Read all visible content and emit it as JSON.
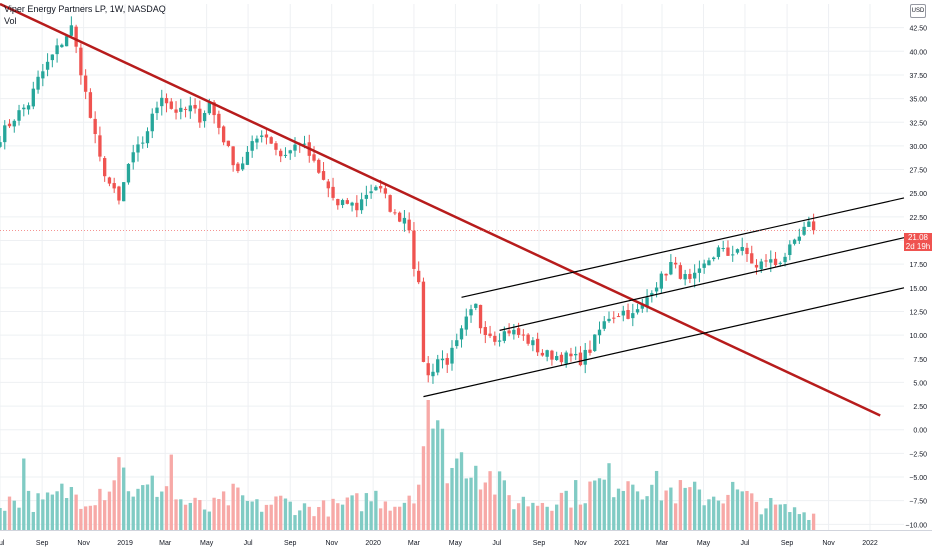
{
  "header": {
    "title": "Viper Energy Partners LP, 1W, NASDAQ",
    "volume_label": "Vol",
    "currency": "USD"
  },
  "price_tag": {
    "price": "21.08",
    "countdown": "2d 19h"
  },
  "colors": {
    "up": "#26a69a",
    "down": "#ef5350",
    "vol_up": "#80cbc4",
    "vol_down": "#f7a9a7",
    "trendline": "#b71c1c",
    "channel": "#000000",
    "grid": "#eef0f3",
    "axis_text": "#131722"
  },
  "chart_data": {
    "type": "candlestick",
    "title": "Viper Energy Partners LP, 1W, NASDAQ",
    "timeframe": "1W",
    "x_tick_labels": [
      "Jul",
      "Sep",
      "Nov",
      "2019",
      "Mar",
      "May",
      "Jul",
      "Sep",
      "Nov",
      "2020",
      "Mar",
      "May",
      "Jul",
      "Sep",
      "Nov",
      "2021",
      "Mar",
      "May",
      "Jul",
      "Sep",
      "Nov",
      "2022"
    ],
    "x_ticks": [
      "2018-07-01",
      "2018-09-01",
      "2018-11-01",
      "2019-01-01",
      "2019-03-01",
      "2019-05-01",
      "2019-07-01",
      "2019-09-01",
      "2019-11-01",
      "2020-01-01",
      "2020-03-01",
      "2020-05-01",
      "2020-07-01",
      "2020-09-01",
      "2020-11-01",
      "2021-01-01",
      "2021-03-01",
      "2021-05-01",
      "2021-07-01",
      "2021-09-01",
      "2021-11-01",
      "2022-01-01"
    ],
    "x_range": [
      "2018-07-01",
      "2022-02-20"
    ],
    "y_tick_labels": [
      "42.50",
      "40.00",
      "37.50",
      "35.00",
      "32.50",
      "30.00",
      "27.50",
      "25.00",
      "22.50",
      "20.00",
      "17.50",
      "15.00",
      "12.50",
      "10.00",
      "7.50",
      "5.00",
      "2.50",
      "0.00",
      "−2.50",
      "−5.00",
      "−7.50",
      "−10.00"
    ],
    "y_range": [
      -10.6,
      45
    ],
    "last_price": 21.08,
    "anchors": [
      [
        "2018-07-01",
        31.0
      ],
      [
        "2018-07-22",
        33.0
      ],
      [
        "2018-08-12",
        34.5
      ],
      [
        "2018-08-26",
        37.0
      ],
      [
        "2018-09-16",
        39.5
      ],
      [
        "2018-09-30",
        41.0
      ],
      [
        "2018-10-14",
        42.5
      ],
      [
        "2018-10-28",
        38.0
      ],
      [
        "2018-11-11",
        33.0
      ],
      [
        "2018-11-25",
        28.5
      ],
      [
        "2018-12-09",
        26.0
      ],
      [
        "2018-12-23",
        24.0
      ],
      [
        "2019-01-06",
        28.0
      ],
      [
        "2019-01-27",
        30.5
      ],
      [
        "2019-02-10",
        33.0
      ],
      [
        "2019-02-24",
        35.5
      ],
      [
        "2019-03-10",
        34.0
      ],
      [
        "2019-03-24",
        33.5
      ],
      [
        "2019-04-07",
        34.0
      ],
      [
        "2019-04-21",
        33.0
      ],
      [
        "2019-05-05",
        34.5
      ],
      [
        "2019-05-19",
        32.0
      ],
      [
        "2019-06-02",
        29.5
      ],
      [
        "2019-06-16",
        27.5
      ],
      [
        "2019-07-07",
        30.0
      ],
      [
        "2019-07-21",
        31.5
      ],
      [
        "2019-08-04",
        30.5
      ],
      [
        "2019-08-18",
        29.0
      ],
      [
        "2019-09-01",
        29.5
      ],
      [
        "2019-09-15",
        30.5
      ],
      [
        "2019-09-29",
        29.0
      ],
      [
        "2019-10-13",
        27.0
      ],
      [
        "2019-10-27",
        25.5
      ],
      [
        "2019-11-10",
        23.5
      ],
      [
        "2019-11-24",
        24.0
      ],
      [
        "2019-12-08",
        23.5
      ],
      [
        "2019-12-22",
        25.0
      ],
      [
        "2020-01-05",
        25.8
      ],
      [
        "2020-01-19",
        24.5
      ],
      [
        "2020-02-02",
        22.5
      ],
      [
        "2020-02-16",
        22.5
      ],
      [
        "2020-02-23",
        21.5
      ],
      [
        "2020-03-01",
        17.5
      ],
      [
        "2020-03-08",
        15.0
      ],
      [
        "2020-03-15",
        7.5
      ],
      [
        "2020-03-22",
        5.6
      ],
      [
        "2020-04-05",
        7.5
      ],
      [
        "2020-04-19",
        7.3
      ],
      [
        "2020-05-03",
        9.0
      ],
      [
        "2020-05-17",
        11.5
      ],
      [
        "2020-05-31",
        13.0
      ],
      [
        "2020-06-07",
        11.0
      ],
      [
        "2020-06-28",
        9.8
      ],
      [
        "2020-07-19",
        10.5
      ],
      [
        "2020-08-09",
        9.8
      ],
      [
        "2020-08-23",
        9.0
      ],
      [
        "2020-09-06",
        8.0
      ],
      [
        "2020-09-27",
        7.8
      ],
      [
        "2020-10-18",
        7.6
      ],
      [
        "2020-11-01",
        7.4
      ],
      [
        "2020-11-15",
        8.5
      ],
      [
        "2020-11-29",
        10.5
      ],
      [
        "2020-12-13",
        12.0
      ],
      [
        "2021-01-03",
        12.5
      ],
      [
        "2021-01-17",
        12.0
      ],
      [
        "2021-01-31",
        13.0
      ],
      [
        "2021-02-14",
        15.0
      ],
      [
        "2021-02-28",
        16.0
      ],
      [
        "2021-03-14",
        17.5
      ],
      [
        "2021-03-28",
        16.5
      ],
      [
        "2021-04-11",
        15.5
      ],
      [
        "2021-04-25",
        16.5
      ],
      [
        "2021-05-09",
        18.0
      ],
      [
        "2021-05-23",
        19.0
      ],
      [
        "2021-06-06",
        18.5
      ],
      [
        "2021-06-20",
        19.2
      ],
      [
        "2021-07-04",
        18.5
      ],
      [
        "2021-07-18",
        17.0
      ],
      [
        "2021-08-01",
        18.0
      ],
      [
        "2021-08-15",
        17.5
      ],
      [
        "2021-08-29",
        18.5
      ],
      [
        "2021-09-12",
        19.5
      ],
      [
        "2021-09-26",
        21.0
      ],
      [
        "2021-10-03",
        21.5
      ],
      [
        "2021-10-10",
        21.08
      ]
    ],
    "volume_anchors": [
      [
        "2018-07-01",
        0.22
      ],
      [
        "2018-08-05",
        0.25
      ],
      [
        "2018-09-02",
        0.2
      ],
      [
        "2018-10-07",
        0.3
      ],
      [
        "2018-11-04",
        0.26
      ],
      [
        "2018-12-02",
        0.33
      ],
      [
        "2018-12-23",
        0.48
      ],
      [
        "2019-01-20",
        0.27
      ],
      [
        "2019-02-24",
        0.36
      ],
      [
        "2019-03-24",
        0.22
      ],
      [
        "2019-05-05",
        0.16
      ],
      [
        "2019-06-09",
        0.26
      ],
      [
        "2019-07-14",
        0.18
      ],
      [
        "2019-08-18",
        0.22
      ],
      [
        "2019-09-22",
        0.17
      ],
      [
        "2019-10-27",
        0.17
      ],
      [
        "2019-12-01",
        0.2
      ],
      [
        "2020-01-05",
        0.26
      ],
      [
        "2020-02-09",
        0.2
      ],
      [
        "2020-03-08",
        0.38
      ],
      [
        "2020-03-22",
        1.0
      ],
      [
        "2020-04-05",
        0.68
      ],
      [
        "2020-04-26",
        0.5
      ],
      [
        "2020-05-24",
        0.58
      ],
      [
        "2020-06-21",
        0.4
      ],
      [
        "2020-07-26",
        0.22
      ],
      [
        "2020-08-30",
        0.22
      ],
      [
        "2020-10-04",
        0.26
      ],
      [
        "2020-11-08",
        0.3
      ],
      [
        "2020-12-13",
        0.38
      ],
      [
        "2021-01-10",
        0.42
      ],
      [
        "2021-02-07",
        0.36
      ],
      [
        "2021-03-07",
        0.3
      ],
      [
        "2021-04-11",
        0.28
      ],
      [
        "2021-05-09",
        0.26
      ],
      [
        "2021-06-13",
        0.3
      ],
      [
        "2021-07-11",
        0.22
      ],
      [
        "2021-08-08",
        0.18
      ],
      [
        "2021-09-05",
        0.15
      ],
      [
        "2021-10-10",
        0.12
      ]
    ],
    "volume_spikes": [
      [
        "2018-08-05",
        0.55
      ],
      [
        "2018-12-23",
        0.56
      ],
      [
        "2019-03-10",
        0.58
      ],
      [
        "2020-03-22",
        1.0
      ],
      [
        "2020-03-29",
        0.78
      ]
    ],
    "drawings": [
      {
        "kind": "descending-trendline",
        "color": "#b71c1c",
        "points": [
          [
            "2018-07-01",
            45.0
          ],
          [
            "2022-01-16",
            1.5
          ]
        ]
      },
      {
        "kind": "channel-upper",
        "color": "#000000",
        "points": [
          [
            "2020-05-10",
            14.0
          ],
          [
            "2022-02-20",
            24.5
          ]
        ]
      },
      {
        "kind": "channel-middle",
        "color": "#000000",
        "points": [
          [
            "2020-07-05",
            10.5
          ],
          [
            "2022-02-20",
            20.3
          ]
        ]
      },
      {
        "kind": "channel-lower",
        "color": "#000000",
        "points": [
          [
            "2020-03-15",
            3.5
          ],
          [
            "2022-02-20",
            15.0
          ]
        ]
      }
    ]
  }
}
